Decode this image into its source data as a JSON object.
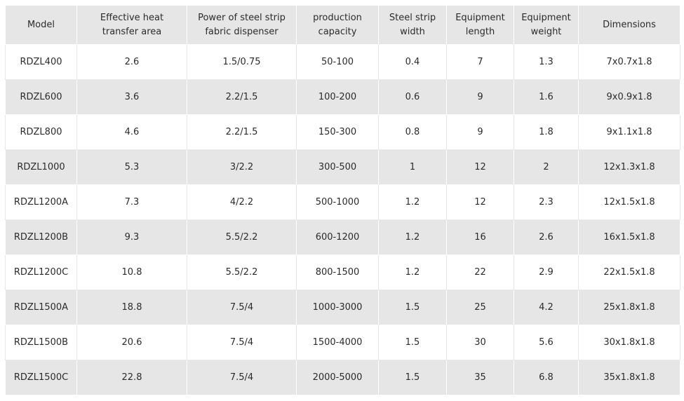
{
  "table": {
    "headers": [
      "Model",
      "Effective heat transfer area",
      "Power of steel strip fabric dispenser",
      "production capacity",
      "Steel strip width",
      "Equipment length",
      "Equipment weight",
      "Dimensions"
    ],
    "rows": [
      [
        "RDZL400",
        "2.6",
        "1.5/0.75",
        "50-100",
        "0.4",
        "7",
        "1.3",
        "7x0.7x1.8"
      ],
      [
        "RDZL600",
        "3.6",
        "2.2/1.5",
        "100-200",
        "0.6",
        "9",
        "1.6",
        "9x0.9x1.8"
      ],
      [
        "RDZL800",
        "4.6",
        "2.2/1.5",
        "150-300",
        "0.8",
        "9",
        "1.8",
        "9x1.1x1.8"
      ],
      [
        "RDZL1000",
        "5.3",
        "3/2.2",
        "300-500",
        "1",
        "12",
        "2",
        "12x1.3x1.8"
      ],
      [
        "RDZL1200A",
        "7.3",
        "4/2.2",
        "500-1000",
        "1.2",
        "12",
        "2.3",
        "12x1.5x1.8"
      ],
      [
        "RDZL1200B",
        "9.3",
        "5.5/2.2",
        "600-1200",
        "1.2",
        "16",
        "2.6",
        "16x1.5x1.8"
      ],
      [
        "RDZL1200C",
        "10.8",
        "5.5/2.2",
        "800-1500",
        "1.2",
        "22",
        "2.9",
        "22x1.5x1.8"
      ],
      [
        "RDZL1500A",
        "18.8",
        "7.5/4",
        "1000-3000",
        "1.5",
        "25",
        "4.2",
        "25x1.8x1.8"
      ],
      [
        "RDZL1500B",
        "20.6",
        "7.5/4",
        "1500-4000",
        "1.5",
        "30",
        "5.6",
        "30x1.8x1.8"
      ],
      [
        "RDZL1500C",
        "22.8",
        "7.5/4",
        "2000-5000",
        "1.5",
        "35",
        "6.8",
        "35x1.8x1.8"
      ]
    ]
  },
  "colors": {
    "header_bg": "#e6e6e6",
    "stripe_bg": "#e6e6e6",
    "row_bg": "#ffffff",
    "text": "#2b2b2b"
  }
}
